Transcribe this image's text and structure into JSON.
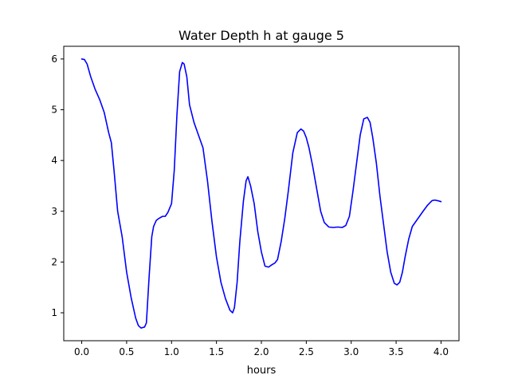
{
  "chart_data": {
    "type": "line",
    "title": "Water Depth h at gauge 5",
    "xlabel": "hours",
    "ylabel": "",
    "xlim": [
      -0.2,
      4.2
    ],
    "ylim": [
      0.45,
      6.25
    ],
    "xticks": [
      0.0,
      0.5,
      1.0,
      1.5,
      2.0,
      2.5,
      3.0,
      3.5,
      4.0
    ],
    "xtick_labels": [
      "0.0",
      "0.5",
      "1.0",
      "1.5",
      "2.0",
      "2.5",
      "3.0",
      "3.5",
      "4.0"
    ],
    "yticks": [
      1,
      2,
      3,
      4,
      5,
      6
    ],
    "ytick_labels": [
      "1",
      "2",
      "3",
      "4",
      "5",
      "6"
    ],
    "grid": false,
    "series": [
      {
        "color": "#0000ff",
        "x": [
          0.0,
          0.03,
          0.06,
          0.1,
          0.15,
          0.2,
          0.25,
          0.3,
          0.33,
          0.36,
          0.4,
          0.45,
          0.5,
          0.55,
          0.6,
          0.63,
          0.66,
          0.7,
          0.72,
          0.75,
          0.78,
          0.8,
          0.83,
          0.86,
          0.9,
          0.93,
          0.96,
          1.0,
          1.03,
          1.06,
          1.09,
          1.12,
          1.14,
          1.17,
          1.2,
          1.25,
          1.3,
          1.35,
          1.4,
          1.45,
          1.5,
          1.55,
          1.6,
          1.65,
          1.68,
          1.7,
          1.73,
          1.76,
          1.8,
          1.83,
          1.85,
          1.88,
          1.92,
          1.96,
          2.0,
          2.04,
          2.08,
          2.12,
          2.15,
          2.18,
          2.22,
          2.26,
          2.3,
          2.35,
          2.4,
          2.44,
          2.47,
          2.5,
          2.53,
          2.57,
          2.62,
          2.66,
          2.7,
          2.75,
          2.8,
          2.85,
          2.9,
          2.94,
          2.98,
          3.02,
          3.06,
          3.1,
          3.14,
          3.18,
          3.21,
          3.24,
          3.28,
          3.32,
          3.36,
          3.4,
          3.44,
          3.48,
          3.51,
          3.54,
          3.57,
          3.6,
          3.64,
          3.68,
          3.72,
          3.76,
          3.8,
          3.85,
          3.9,
          3.93,
          3.96,
          4.0
        ],
        "y": [
          6.0,
          5.99,
          5.9,
          5.65,
          5.4,
          5.2,
          4.95,
          4.55,
          4.35,
          3.8,
          3.0,
          2.5,
          1.8,
          1.3,
          0.9,
          0.75,
          0.7,
          0.72,
          0.8,
          1.7,
          2.5,
          2.7,
          2.82,
          2.86,
          2.9,
          2.9,
          2.98,
          3.15,
          3.8,
          4.9,
          5.75,
          5.93,
          5.9,
          5.65,
          5.1,
          4.75,
          4.5,
          4.25,
          3.6,
          2.8,
          2.1,
          1.6,
          1.28,
          1.05,
          1.0,
          1.1,
          1.6,
          2.4,
          3.2,
          3.6,
          3.68,
          3.5,
          3.15,
          2.6,
          2.2,
          1.92,
          1.9,
          1.95,
          1.98,
          2.05,
          2.4,
          2.85,
          3.4,
          4.15,
          4.55,
          4.62,
          4.58,
          4.45,
          4.25,
          3.9,
          3.4,
          3.0,
          2.78,
          2.69,
          2.68,
          2.69,
          2.68,
          2.72,
          2.9,
          3.4,
          3.95,
          4.5,
          4.82,
          4.85,
          4.75,
          4.45,
          3.95,
          3.3,
          2.75,
          2.2,
          1.8,
          1.58,
          1.55,
          1.6,
          1.8,
          2.1,
          2.45,
          2.7,
          2.8,
          2.9,
          3.0,
          3.12,
          3.21,
          3.22,
          3.21,
          3.19
        ]
      }
    ]
  }
}
